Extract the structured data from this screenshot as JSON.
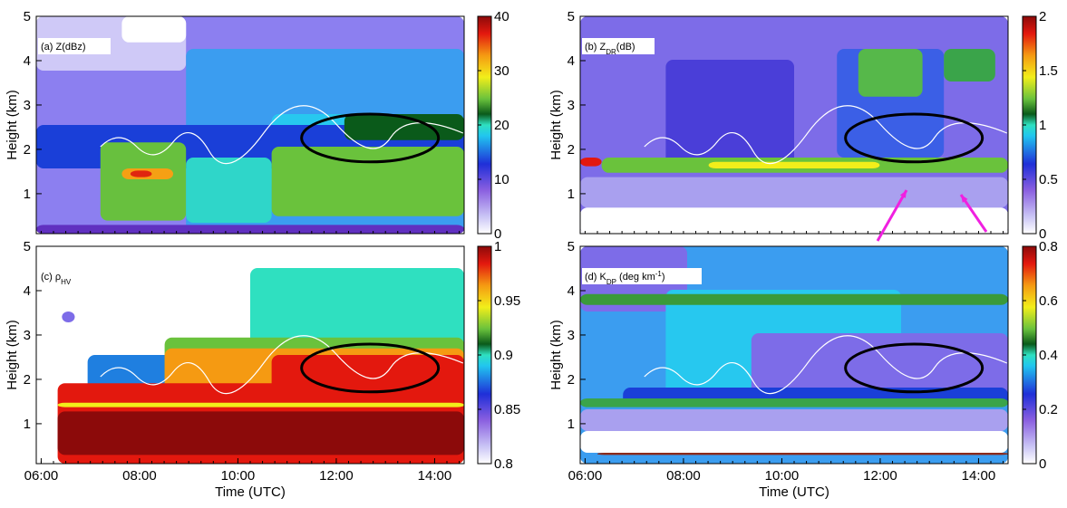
{
  "chart_data": [
    {
      "type": "heatmap",
      "label": [
        {
          "text": "(a) Z(dBz)"
        }
      ],
      "ylabel": "Height (km)",
      "xlim": [
        5.9,
        14.6
      ],
      "ylim": [
        0.1,
        5
      ],
      "yticks": [
        1,
        2,
        3,
        4,
        5
      ],
      "colorbar": {
        "lim": [
          0,
          40
        ],
        "ticks": [
          0,
          10,
          20,
          30,
          40
        ]
      }
    },
    {
      "type": "heatmap",
      "label": [
        {
          "text": "(b) Z"
        },
        {
          "sub": "DR"
        },
        {
          "text": "(dB)"
        }
      ],
      "ylabel": "Height (km)",
      "xlim": [
        5.9,
        14.6
      ],
      "ylim": [
        0.1,
        5
      ],
      "yticks": [
        1,
        2,
        3,
        4,
        5
      ],
      "colorbar": {
        "lim": [
          0,
          2
        ],
        "ticks": [
          0,
          0.5,
          1,
          1.5,
          2
        ]
      }
    },
    {
      "type": "heatmap",
      "label": [
        {
          "text": "(c) ρ"
        },
        {
          "sub": "HV"
        }
      ],
      "ylabel": "Height (km)",
      "xlabel": "Time (UTC)",
      "xlim": [
        5.9,
        14.6
      ],
      "xticks": [
        {
          "value": 6,
          "label": "06:00"
        },
        {
          "value": 8,
          "label": "08:00"
        },
        {
          "value": 10,
          "label": "10:00"
        },
        {
          "value": 12,
          "label": "12:00"
        },
        {
          "value": 14,
          "label": "14:00"
        }
      ],
      "ylim": [
        0.1,
        5
      ],
      "yticks": [
        1,
        2,
        3,
        4,
        5
      ],
      "colorbar": {
        "lim": [
          0.8,
          1
        ],
        "ticks": [
          0.8,
          0.85,
          0.9,
          0.95,
          1
        ]
      }
    },
    {
      "type": "heatmap",
      "label": [
        {
          "text": "(d) K"
        },
        {
          "sub": "DP"
        },
        {
          "text": " (deg km"
        },
        {
          "sup": "-1"
        },
        {
          "text": ")"
        }
      ],
      "ylabel": "Height (km)",
      "xlabel": "Time (UTC)",
      "xlim": [
        5.9,
        14.6
      ],
      "xticks": [
        {
          "value": 6,
          "label": "06:00"
        },
        {
          "value": 8,
          "label": "08:00"
        },
        {
          "value": 10,
          "label": "10:00"
        },
        {
          "value": 12,
          "label": "12:00"
        },
        {
          "value": 14,
          "label": "14:00"
        }
      ],
      "ylim": [
        0.1,
        5
      ],
      "yticks": [
        1,
        2,
        3,
        4,
        5
      ],
      "colorbar": {
        "lim": [
          0,
          0.8
        ],
        "ticks": [
          0,
          0.2,
          0.4,
          0.6,
          0.8
        ]
      }
    }
  ]
}
